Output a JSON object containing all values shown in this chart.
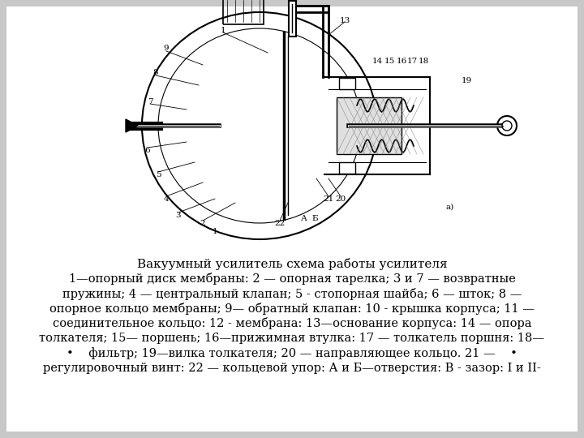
{
  "bg_color": "#c8c8c8",
  "inner_bg": "#ffffff",
  "title": "Вакуумный усилитель схема работы усилителя",
  "line1": "1—опорный диск мембраны: 2 — опорная тарелка; 3 и 7 — возвратные",
  "line2": "пружины; 4 — центральный клапан; 5 - стопорная шайба; 6 — шток; 8 —",
  "line3": "опорное кольцо мембраны; 9— обратный клапан: 10 - крышка корпуса; 11 —",
  "line4": "соединительное кольцо: 12 - мембрана: 13—основание корпуса: 14 — опора",
  "line5": "толкателя; 15— поршень; 16—прижимная втулка: 17 — толкатель поршня: 18—",
  "line6": "•    фильтр; 19—вилка толкателя; 20 — направляющее кольцо. 21 —    •",
  "line7": "регулировочный винт: 22 — кольцевой упор: А и Б—отверстия: В - зазор: I и II-",
  "font_family": "DejaVu Serif",
  "title_fontsize": 11,
  "body_fontsize": 10.5
}
